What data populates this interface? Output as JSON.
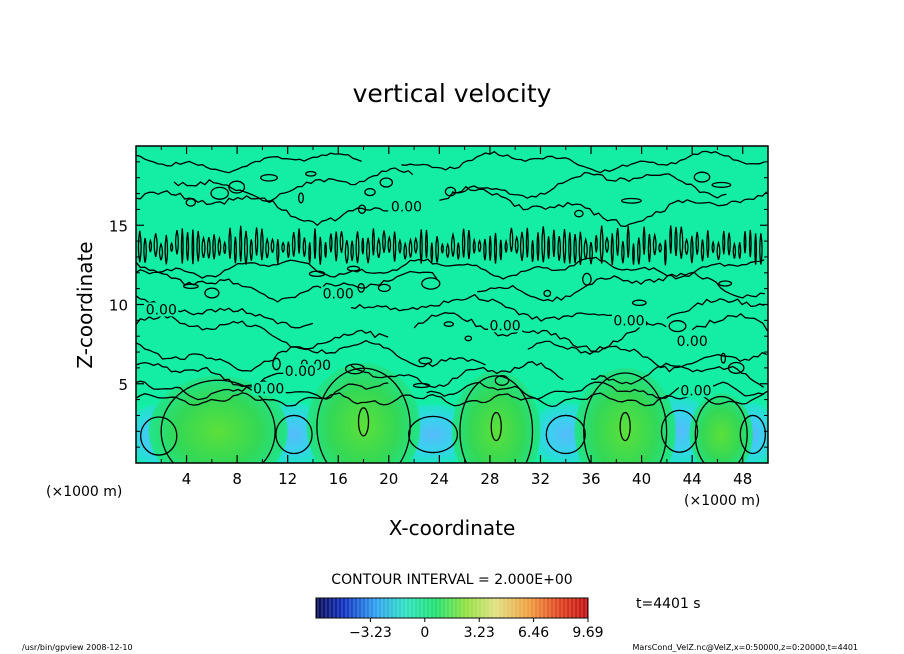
{
  "chart_data": {
    "type": "heatmap",
    "title": "vertical velocity",
    "xlabel": "X-coordinate",
    "ylabel": "Z-coordinate",
    "x_unit_left": "(×1000 m)",
    "x_unit_right": "(×1000 m)",
    "xlim": [
      0,
      50
    ],
    "ylim": [
      0,
      20
    ],
    "x_ticks": [
      4,
      8,
      12,
      16,
      20,
      24,
      28,
      32,
      36,
      40,
      44,
      48
    ],
    "y_ticks": [
      5,
      10,
      15
    ],
    "contour_label": "0.00",
    "contour_label_positions": [
      [
        21.4,
        16.0
      ],
      [
        16.0,
        10.5
      ],
      [
        2.0,
        9.5
      ],
      [
        29.2,
        8.5
      ],
      [
        14.2,
        6.0
      ],
      [
        13.0,
        5.6
      ],
      [
        10.5,
        4.5
      ],
      [
        39.0,
        8.8
      ],
      [
        44.0,
        7.5
      ],
      [
        44.3,
        4.4
      ]
    ],
    "contour_interval": "CONTOUR INTERVAL = 2.000E+00",
    "colorbar_ticks": [
      "−3.23",
      "0",
      "3.23",
      "6.46",
      "9.69"
    ],
    "colorbar_range": [
      -6.46,
      9.69
    ],
    "colorbar_tick_values": [
      -3.23,
      0,
      3.23,
      6.46,
      9.69
    ],
    "time_label": "t=4401 s",
    "footer_left": "/usr/bin/gpview   2008-12-10",
    "footer_right": "MarsCond_VelZ.nc@VelZ,x=0:50000,z=0:20000,t=4401",
    "colors": {
      "background": "#14eea5",
      "updraft": "#3cd84f",
      "downdraft": "#3cc8ee"
    }
  }
}
